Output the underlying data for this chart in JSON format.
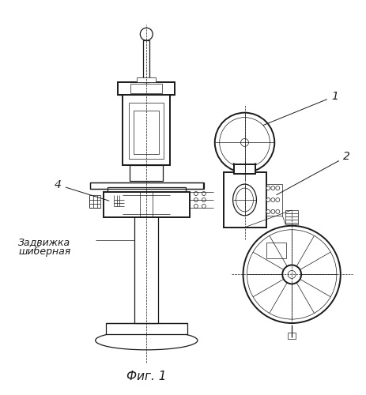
{
  "fig_label": "Фиг. 1",
  "label_1": "1",
  "label_2": "2",
  "label_4": "4",
  "annotation_line1": "Задвижка",
  "annotation_line2": "шиберная",
  "bg_color": "#ffffff",
  "line_color": "#1a1a1a"
}
